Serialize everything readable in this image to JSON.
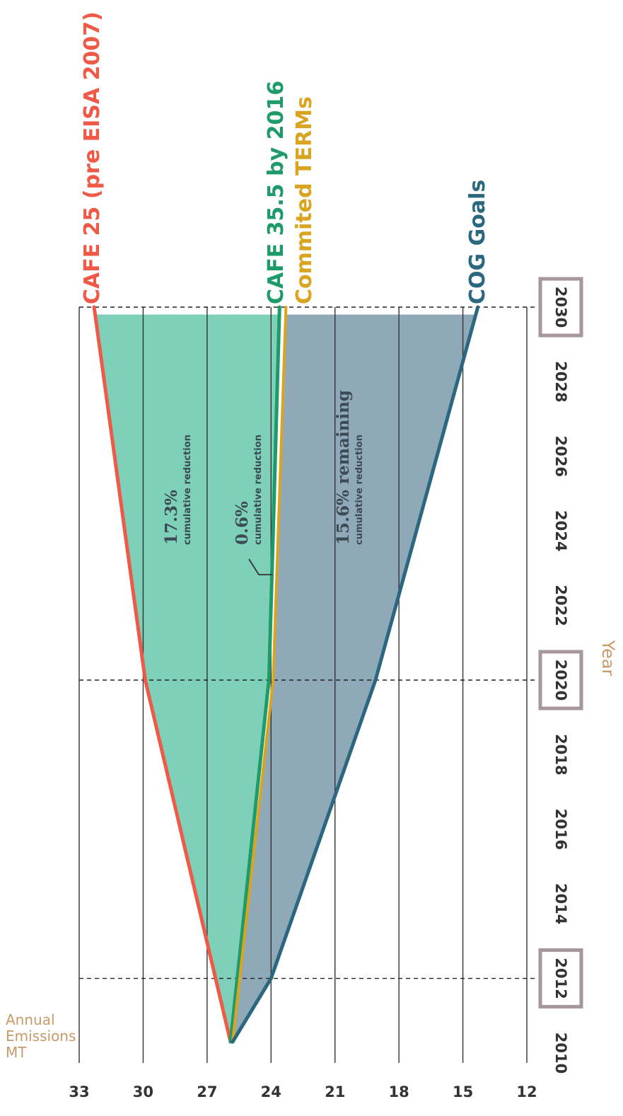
{
  "chart_data": {
    "type": "area",
    "orientation": "rotated 90° clockwise",
    "ylabel": [
      "Annual",
      "Emissions",
      "MT"
    ],
    "xlabel": "Year",
    "x_ticks": [
      "2010",
      "2012",
      "2014",
      "2016",
      "2018",
      "2020",
      "2022",
      "2024",
      "2026",
      "2028",
      "2030"
    ],
    "x_highlighted_ticks": [
      "2012",
      "2020",
      "2030"
    ],
    "y_ticks": [
      "33",
      "30",
      "27",
      "24",
      "21",
      "18",
      "15",
      "12"
    ],
    "xlim": [
      2010,
      2030
    ],
    "ylim": [
      12,
      33
    ],
    "grid": true,
    "series": [
      {
        "name": "CAFE 25 (pre EISA 2007)",
        "color": "#ee5a47",
        "x": [
          2010.3,
          2020,
          2030
        ],
        "y": [
          25.9,
          29.9,
          32.3
        ]
      },
      {
        "name": "CAFE 35.5 by 2016",
        "color": "#1f9a6a",
        "x": [
          2010.3,
          2020,
          2030
        ],
        "y": [
          25.9,
          24.1,
          23.6
        ]
      },
      {
        "name": "Commited TERMs",
        "color": "#d9a520",
        "x": [
          2010.3,
          2020,
          2030
        ],
        "y": [
          25.8,
          23.9,
          23.3
        ]
      },
      {
        "name": "COG Goals",
        "color": "#2b6880",
        "x": [
          2010.3,
          2012,
          2020,
          2030
        ],
        "y": [
          25.8,
          24.0,
          19.1,
          14.3
        ]
      }
    ],
    "annotations": [
      {
        "value": "17.3%",
        "text": "cumulative reduction"
      },
      {
        "value": "0.6%",
        "text": "cumulative reduction"
      },
      {
        "value": "15.6% remaining",
        "text": "cumulative reduction"
      }
    ],
    "fill_colors": {
      "upper_band": "#7fd0b8",
      "lower_band": "#8fa9b8"
    }
  }
}
